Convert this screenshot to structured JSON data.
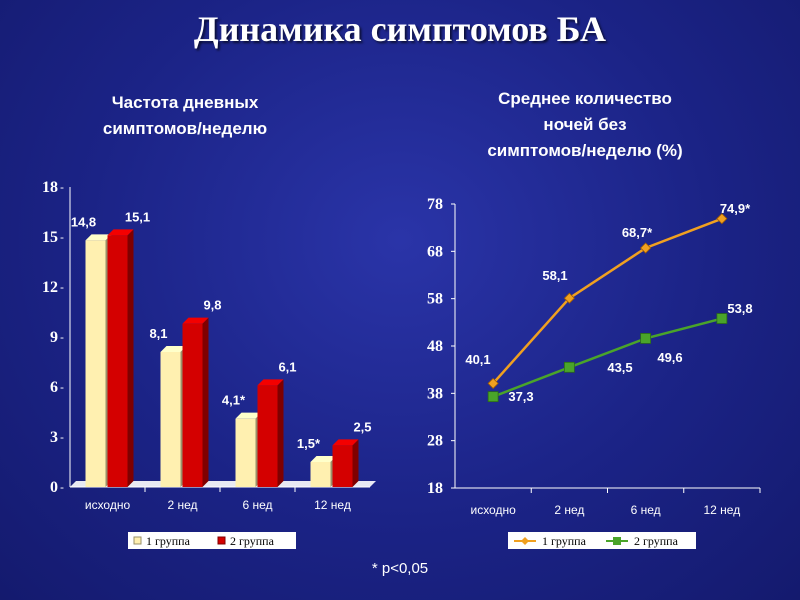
{
  "slide_title": "Динамика симптомов БА",
  "footnote": "* p<0,05",
  "colors": {
    "background": "#1b2386",
    "bar_group1": "#fff0b0",
    "bar_group2": "#d40000",
    "line_group1": "#f0a020",
    "line_group2": "#4aa42a"
  },
  "chart_data": [
    {
      "type": "bar",
      "title_lines": [
        "Частота дневных",
        "симптомов/неделю"
      ],
      "categories": [
        "исходно",
        "2 нед",
        "6 нед",
        "12 нед"
      ],
      "yticks": [
        "0",
        "3",
        "6",
        "9",
        "12",
        "15",
        "18"
      ],
      "ylim": [
        0,
        18
      ],
      "series": [
        {
          "name": "1 группа",
          "values": [
            14.8,
            8.1,
            4.1,
            1.5
          ],
          "labels": [
            "14,8",
            "8,1",
            "4,1*",
            "1,5*"
          ]
        },
        {
          "name": "2 группа",
          "values": [
            15.1,
            9.8,
            6.1,
            2.5
          ],
          "labels": [
            "15,1",
            "9,8",
            "6,1",
            "2,5"
          ]
        }
      ],
      "legend": "bottom"
    },
    {
      "type": "line",
      "title_lines": [
        "Среднее количество",
        "ночей без",
        "симптомов/неделю (%)"
      ],
      "categories": [
        "исходно",
        "2 нед",
        "6 нед",
        "12 нед"
      ],
      "yticks": [
        "18",
        "28",
        "38",
        "48",
        "58",
        "68",
        "78"
      ],
      "ylim": [
        18,
        78
      ],
      "series": [
        {
          "name": "1 группа",
          "marker": "diamond",
          "values": [
            40.1,
            58.1,
            68.7,
            74.9
          ],
          "labels": [
            "40,1",
            "58,1",
            "68,7*",
            "74,9*"
          ]
        },
        {
          "name": "2 группа",
          "marker": "square",
          "values": [
            37.3,
            43.5,
            49.6,
            53.8
          ],
          "labels": [
            "37,3",
            "43,5",
            "49,6",
            "53,8"
          ]
        }
      ],
      "legend": "bottom"
    }
  ]
}
